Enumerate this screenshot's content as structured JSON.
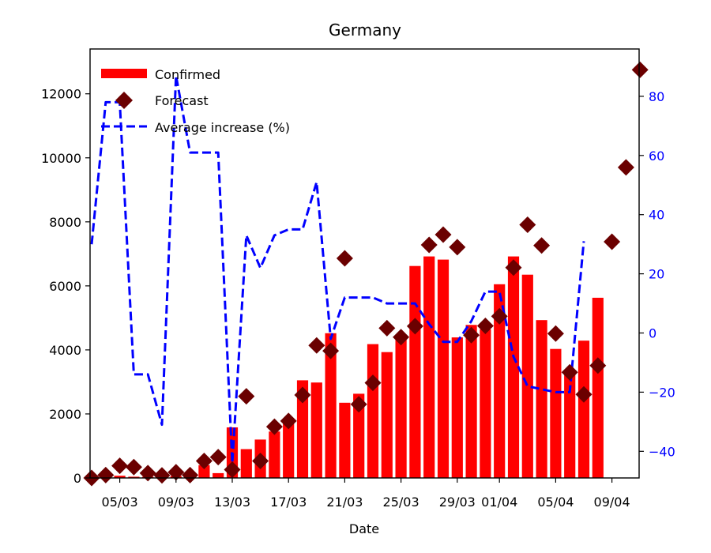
{
  "chart_data": {
    "type": "bar",
    "title": "Germany",
    "xlabel": "Date",
    "ylabel": "",
    "y2label": "",
    "x_tick_labels": [
      "05/03",
      "09/03",
      "13/03",
      "17/03",
      "21/03",
      "25/03",
      "29/03",
      "01/04",
      "05/04",
      "09/04"
    ],
    "y_ticks": [
      0,
      2000,
      4000,
      6000,
      8000,
      10000,
      12000
    ],
    "y_tick_labels": [
      "0",
      "2000",
      "4000",
      "6000",
      "8000",
      "10000",
      "12000"
    ],
    "y2_ticks": [
      -40,
      -20,
      0,
      20,
      40,
      60,
      80
    ],
    "y2_tick_labels": [
      "−40",
      "−20",
      "0",
      "20",
      "40",
      "60",
      "80"
    ],
    "ylim": [
      0,
      13400
    ],
    "y2lim": [
      -49,
      96
    ],
    "grid": false,
    "legend_position": "top-left",
    "colors": {
      "confirmed": "#ff0000",
      "forecast": "#6b0000",
      "average": "#0000ff",
      "right_axis": "#0000ff"
    },
    "dates": [
      "03/03",
      "04/03",
      "05/03",
      "06/03",
      "07/03",
      "08/03",
      "09/03",
      "10/03",
      "11/03",
      "12/03",
      "13/03",
      "14/03",
      "15/03",
      "16/03",
      "17/03",
      "18/03",
      "19/03",
      "20/03",
      "21/03",
      "22/03",
      "23/03",
      "24/03",
      "25/03",
      "26/03",
      "27/03",
      "28/03",
      "29/03",
      "30/03",
      "31/03",
      "01/04",
      "02/04",
      "03/04",
      "04/04",
      "05/04",
      "06/04",
      "07/04",
      "08/04",
      "09/04",
      "10/04",
      "11/04"
    ],
    "series": [
      {
        "name": "Confirmed",
        "kind": "bar",
        "axis": "left",
        "values": [
          30,
          40,
          70,
          40,
          40,
          40,
          60,
          80,
          400,
          150,
          1580,
          900,
          1200,
          1450,
          1700,
          3050,
          2980,
          4520,
          2350,
          2630,
          4180,
          3930,
          4350,
          6620,
          6920,
          6820,
          4390,
          4780,
          4640,
          6050,
          6920,
          6350,
          4930,
          4030,
          3250,
          4290,
          5630,
          null,
          null,
          null
        ]
      },
      {
        "name": "Forecast",
        "kind": "scatter",
        "axis": "left",
        "values": [
          0,
          90,
          380,
          340,
          150,
          80,
          180,
          90,
          530,
          650,
          260,
          2550,
          530,
          1600,
          1780,
          2590,
          4140,
          3970,
          6860,
          2300,
          2970,
          4680,
          4400,
          4740,
          7280,
          7600,
          7210,
          4460,
          4750,
          5050,
          6570,
          7910,
          7260,
          4510,
          3300,
          2610,
          3510,
          7380,
          9700,
          12750
        ]
      },
      {
        "name": "Average increase (%)",
        "kind": "line",
        "axis": "right",
        "values": [
          30,
          78,
          78,
          -14,
          -14,
          -31,
          87,
          61,
          61,
          61,
          -44,
          33,
          22,
          33,
          35,
          35,
          51,
          -2,
          12,
          12,
          12,
          10,
          10,
          10,
          3,
          -3,
          -3,
          4,
          14,
          14,
          -8,
          -18,
          -19,
          -20,
          -20,
          31,
          null,
          null,
          null,
          null
        ]
      }
    ]
  }
}
